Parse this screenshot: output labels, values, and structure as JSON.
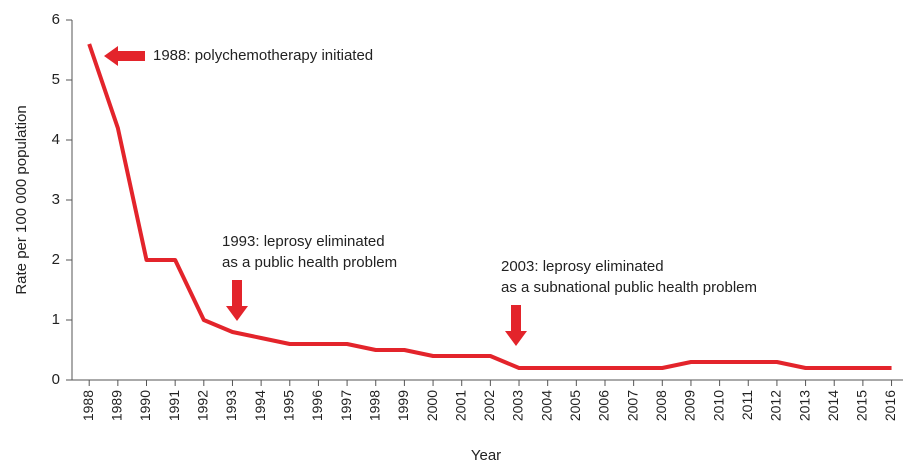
{
  "chart_data": {
    "type": "line",
    "y_label": "Rate per 100 000 population",
    "x_label": "Year",
    "categories": [
      "1988",
      "1989",
      "1990",
      "1991",
      "1992",
      "1993",
      "1994",
      "1995",
      "1996",
      "1997",
      "1998",
      "1999",
      "2000",
      "2001",
      "2002",
      "2003",
      "2004",
      "2005",
      "2006",
      "2007",
      "2008",
      "2009",
      "2010",
      "2011",
      "2012",
      "2013",
      "2014",
      "2015",
      "2016"
    ],
    "values": [
      5.6,
      4.2,
      2.0,
      2.0,
      1.0,
      0.8,
      0.7,
      0.6,
      0.6,
      0.6,
      0.5,
      0.5,
      0.4,
      0.4,
      0.4,
      0.2,
      0.2,
      0.2,
      0.2,
      0.2,
      0.2,
      0.3,
      0.3,
      0.3,
      0.3,
      0.2,
      0.2,
      0.2,
      0.2
    ],
    "color": "#e3242b",
    "ylim": [
      0,
      6
    ],
    "yticks": [
      0,
      1,
      2,
      3,
      4,
      5,
      6
    ],
    "grid": false,
    "annotations": [
      [
        "1988: polychemotherapy initiated"
      ],
      [
        "1993: leprosy eliminated",
        "as a public health problem"
      ],
      [
        "2003: leprosy eliminated",
        "as a subnational public health problem"
      ]
    ]
  }
}
